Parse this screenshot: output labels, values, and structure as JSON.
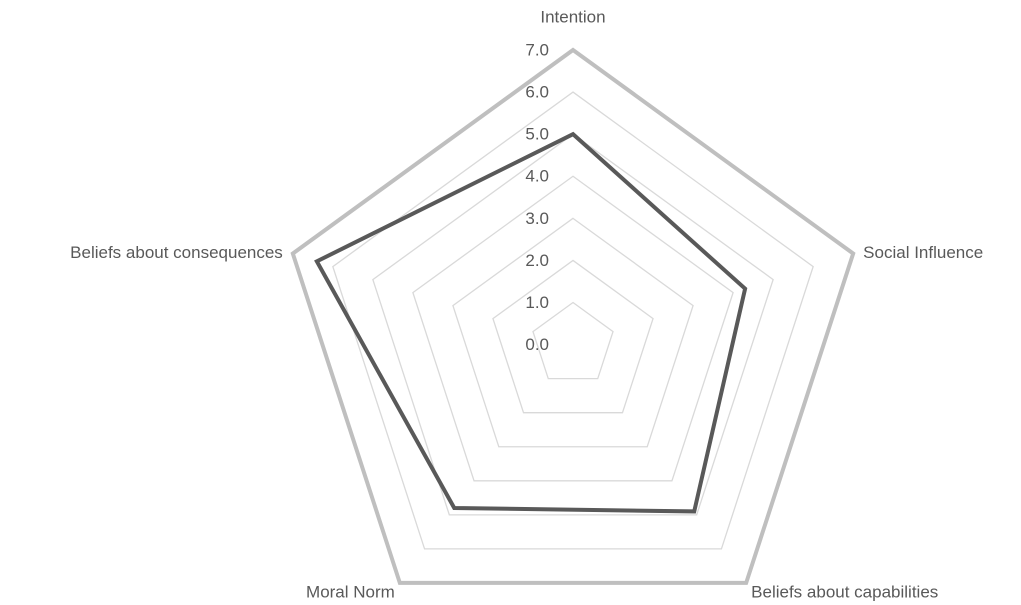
{
  "chart_data": {
    "type": "radar",
    "categories": [
      "Intention",
      "Social Influence",
      "Beliefs about capabilities",
      "Moral Norm",
      "Beliefs about consequences"
    ],
    "values": [
      5.0,
      4.3,
      4.9,
      4.8,
      6.4
    ],
    "color": "#595959",
    "grid_color": "#d9d9d9",
    "outer_color": "#bfbfbf",
    "ylim": [
      0,
      7
    ],
    "yticks": [
      {
        "value": 0,
        "label": "0.0"
      },
      {
        "value": 1,
        "label": "1.0"
      },
      {
        "value": 2,
        "label": "2.0"
      },
      {
        "value": 3,
        "label": "3.0"
      },
      {
        "value": 4,
        "label": "4.0"
      },
      {
        "value": 5,
        "label": "5.0"
      },
      {
        "value": 6,
        "label": "6.0"
      },
      {
        "value": 7,
        "label": "7.0"
      }
    ],
    "grid": true
  }
}
